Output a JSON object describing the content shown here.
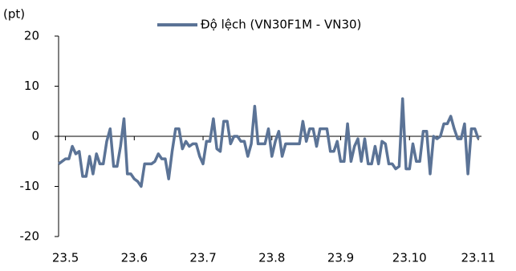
{
  "chart_data": {
    "type": "line",
    "y_label": "(pt)",
    "categories": [
      null,
      null,
      "23.5",
      null,
      null,
      null,
      null,
      null,
      null,
      null,
      null,
      null,
      null,
      null,
      null,
      null,
      null,
      null,
      null,
      null,
      null,
      null,
      "23.6",
      null,
      null,
      null,
      null,
      null,
      null,
      null,
      null,
      null,
      null,
      null,
      null,
      null,
      null,
      null,
      null,
      null,
      null,
      null,
      "23.7",
      null,
      null,
      null,
      null,
      null,
      null,
      null,
      null,
      null,
      null,
      null,
      null,
      null,
      null,
      null,
      null,
      null,
      null,
      null,
      "23.8",
      null,
      null,
      null,
      null,
      null,
      null,
      null,
      null,
      null,
      null,
      null,
      null,
      null,
      null,
      null,
      null,
      null,
      null,
      null,
      "23.9",
      null,
      null,
      null,
      null,
      null,
      null,
      null,
      null,
      null,
      null,
      null,
      null,
      null,
      null,
      null,
      null,
      null,
      null,
      null,
      "23.10",
      null,
      null,
      null,
      null,
      null,
      null,
      null,
      null,
      null,
      null,
      null,
      null,
      null,
      null,
      null,
      null,
      null,
      null,
      null,
      "23.11"
    ],
    "series": [
      {
        "name": "Độ lệch (VN30F1M - VN30)",
        "color": "#5b7396",
        "values": [
          -5.5,
          -5,
          -4.5,
          -4.5,
          -2,
          -3.5,
          -3,
          -8,
          -8,
          -4,
          -7.5,
          -3.5,
          -5.5,
          -5.5,
          -1,
          1.5,
          -6,
          -6,
          -2,
          3.5,
          -7.5,
          -7.5,
          -8.5,
          -9,
          -10,
          -5.5,
          -5.5,
          -5.5,
          -5,
          -3.5,
          -4.5,
          -4.5,
          -8.5,
          -3,
          1.5,
          1.5,
          -2.5,
          -1,
          -2,
          -1.5,
          -1.5,
          -4,
          -5.5,
          -1,
          -1,
          3.5,
          -2.5,
          -3,
          3,
          3,
          -1.5,
          0,
          0,
          -1,
          -1,
          -4,
          -1.5,
          6,
          -1.5,
          -1.5,
          -1.5,
          1.5,
          -4,
          -1,
          1,
          -4,
          -1.5,
          -1.5,
          -1.5,
          -1.5,
          -1.5,
          3,
          -1,
          1.5,
          1.5,
          -2,
          1.5,
          1.5,
          1.5,
          -3,
          -3,
          -1,
          -5,
          -5,
          2.5,
          -5,
          -2,
          -0.5,
          -5,
          -0.5,
          -5.5,
          -5.5,
          -2,
          -5.5,
          -1,
          -1.5,
          -5.5,
          -5.5,
          -6.5,
          -6,
          7.5,
          -6.5,
          -6.5,
          -1.5,
          -5,
          -5,
          1,
          1,
          -7.5,
          0,
          -0.5,
          0,
          2.5,
          2.5,
          4,
          1.5,
          -0.5,
          -0.5,
          2.5,
          -7.5,
          1.5,
          1.5,
          -0.5
        ]
      }
    ],
    "ylim": [
      -20,
      20
    ],
    "yticks": [
      -20,
      -10,
      0,
      10,
      20
    ],
    "legend": "top"
  }
}
